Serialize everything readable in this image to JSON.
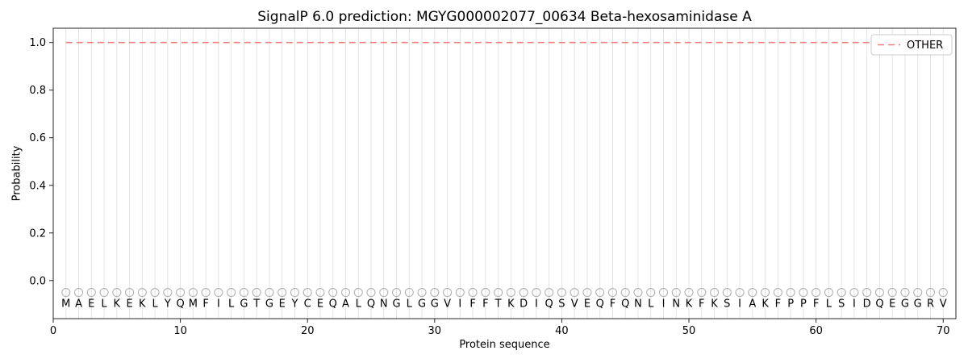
{
  "chart_data": {
    "type": "line",
    "title": "SignalP 6.0 prediction: MGYG000002077_00634 Beta-hexosaminidase A",
    "xlabel": "Protein sequence",
    "ylabel": "Probability",
    "xlim": [
      0,
      71
    ],
    "ylim": [
      -0.16,
      1.06
    ],
    "xticks": [
      0,
      10,
      20,
      30,
      40,
      50,
      60,
      70
    ],
    "yticks": [
      0.0,
      0.2,
      0.4,
      0.6,
      0.8,
      1.0
    ],
    "grid": "vertical-line-per-residue",
    "sequence": "MAELKEKLYQMFILGTGEYCEQALQNGLGGVIFFTKDIQSVEQFQNLINKFKSIAKFPPFLSIDQEGGRV",
    "x_start": 1,
    "marker_y": -0.05,
    "series": [
      {
        "name": "OTHER",
        "color": "#f08080",
        "style": "dashed",
        "x_start": 1,
        "values": [
          1.0,
          1.0,
          1.0,
          1.0,
          1.0,
          1.0,
          1.0,
          1.0,
          1.0,
          1.0,
          1.0,
          1.0,
          1.0,
          1.0,
          1.0,
          1.0,
          1.0,
          1.0,
          1.0,
          1.0,
          1.0,
          1.0,
          1.0,
          1.0,
          1.0,
          1.0,
          1.0,
          1.0,
          1.0,
          1.0,
          1.0,
          1.0,
          1.0,
          1.0,
          1.0,
          1.0,
          1.0,
          1.0,
          1.0,
          1.0,
          1.0,
          1.0,
          1.0,
          1.0,
          1.0,
          1.0,
          1.0,
          1.0,
          1.0,
          1.0,
          1.0,
          1.0,
          1.0,
          1.0,
          1.0,
          1.0,
          1.0,
          1.0,
          1.0,
          1.0,
          1.0,
          1.0,
          1.0,
          1.0,
          1.0,
          1.0,
          1.0,
          1.0,
          1.0,
          1.0
        ]
      }
    ],
    "legend": {
      "position": "upper right",
      "entries": [
        {
          "label": "OTHER",
          "style": "dashed",
          "color": "#f08080"
        }
      ]
    },
    "colors": {
      "grid": "#e0e0e0",
      "spine": "#262626",
      "marker": "#b3b3b3",
      "text": "#000000",
      "legend_border": "#cccccc"
    }
  }
}
